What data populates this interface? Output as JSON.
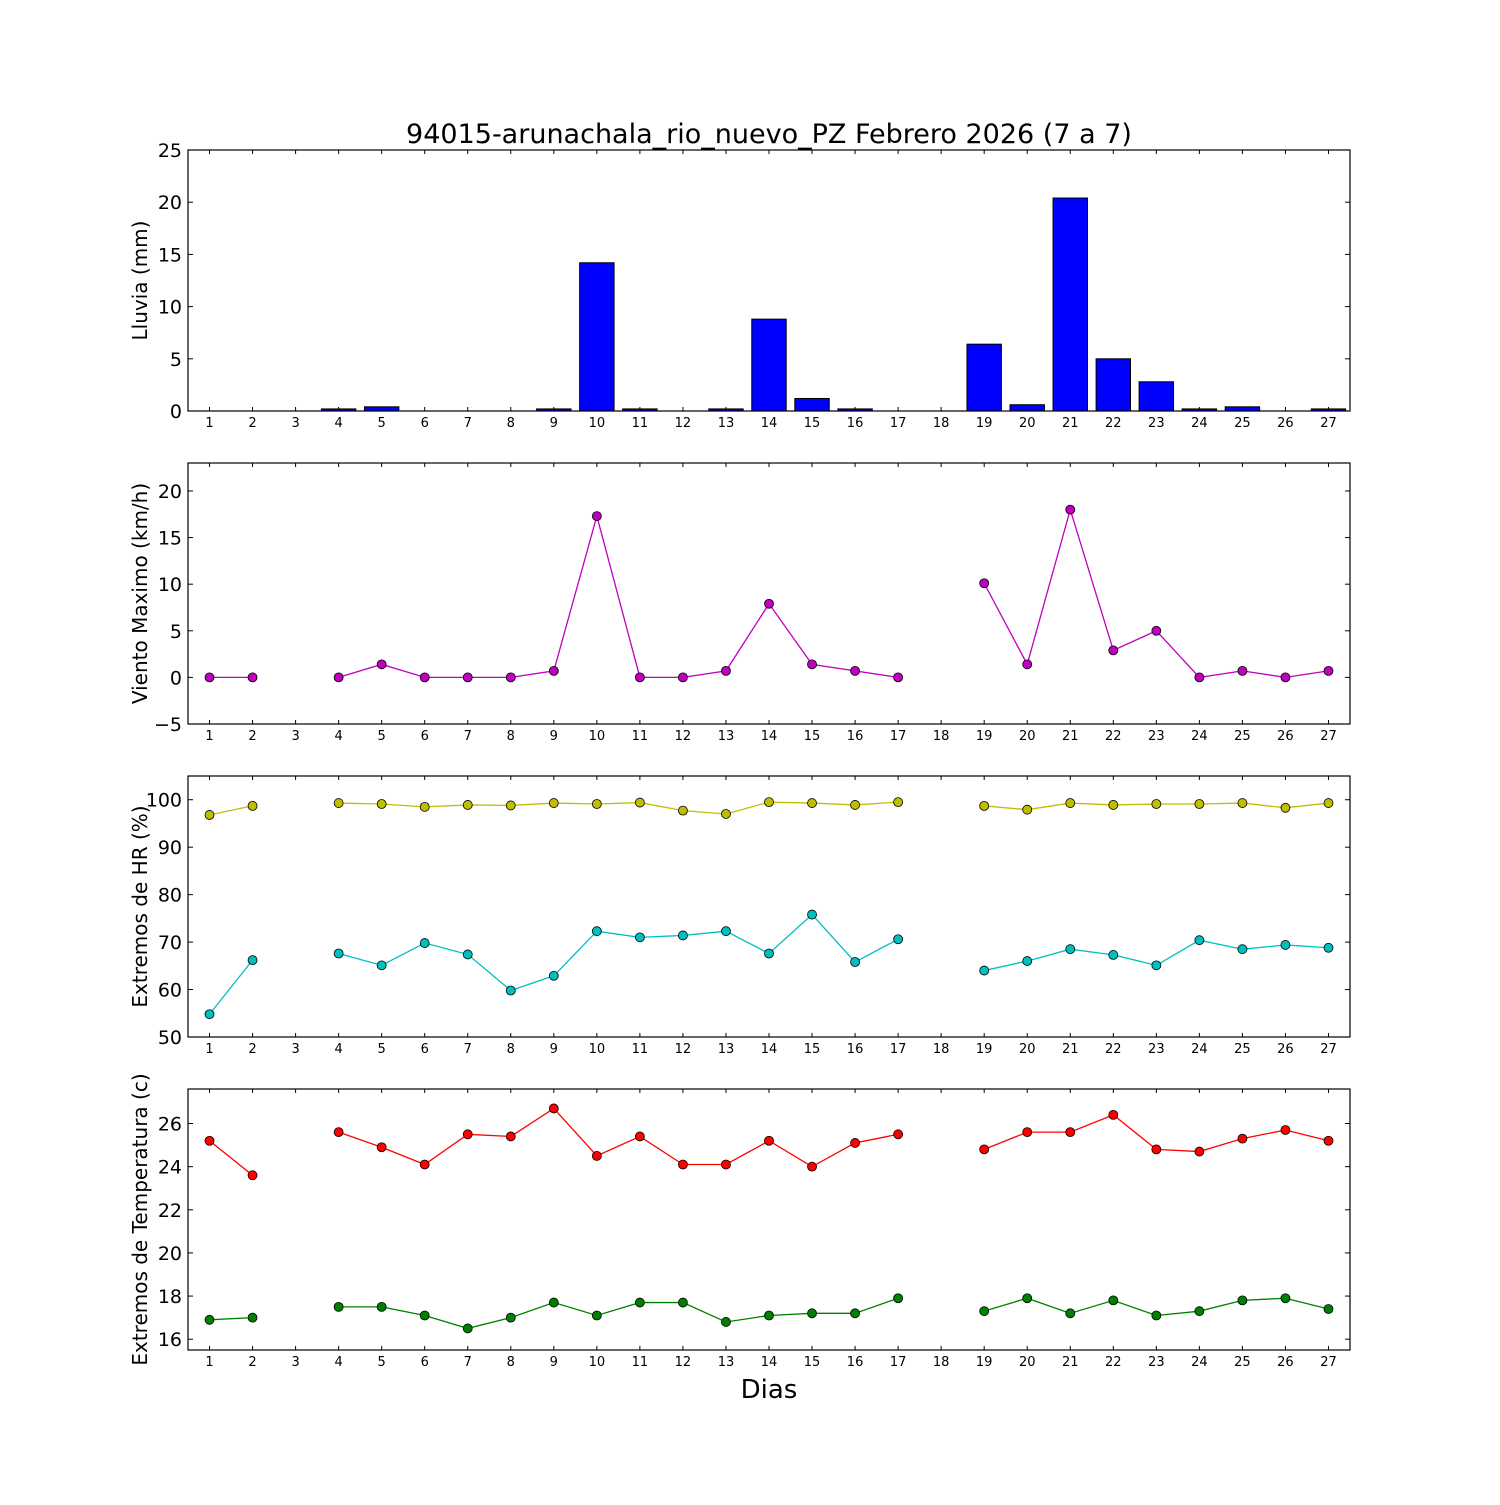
{
  "title": "94015-arunachala_rio_nuevo_PZ Febrero 2026  (7 a 7)",
  "xlabel": "Dias",
  "colors": {
    "rain": "#0000ff",
    "wind": "#bf00bf",
    "hr_max": "#bfbf00",
    "hr_min": "#00bfbf",
    "temp_max": "#ff0000",
    "temp_min": "#008000"
  },
  "chart_data": [
    {
      "type": "bar",
      "ylabel": "Lluvia (mm)",
      "ylim": [
        0,
        25
      ],
      "yticks": [
        0,
        5,
        10,
        15,
        20,
        25
      ],
      "x": [
        1,
        2,
        3,
        4,
        5,
        6,
        7,
        8,
        9,
        10,
        11,
        12,
        13,
        14,
        15,
        16,
        17,
        18,
        19,
        20,
        21,
        22,
        23,
        24,
        25,
        26,
        27
      ],
      "series": [
        {
          "values": [
            0,
            0,
            0,
            0.2,
            0.4,
            0,
            0,
            0,
            0.2,
            14.2,
            0.2,
            0,
            0.2,
            8.8,
            1.2,
            0.2,
            0,
            0,
            6.4,
            0.6,
            20.4,
            5.0,
            2.8,
            0.2,
            0.4,
            0,
            0.2
          ]
        }
      ]
    },
    {
      "type": "line",
      "ylabel": "Viento Maximo (km/h)",
      "ylim": [
        -5,
        23
      ],
      "yticks": [
        -5,
        0,
        5,
        10,
        15,
        20
      ],
      "x": [
        1,
        2,
        3,
        4,
        5,
        6,
        7,
        8,
        9,
        10,
        11,
        12,
        13,
        14,
        15,
        16,
        17,
        18,
        19,
        20,
        21,
        22,
        23,
        24,
        25,
        26,
        27
      ],
      "series": [
        {
          "values": [
            0,
            0,
            null,
            0,
            1.4,
            0,
            0,
            0,
            0.7,
            17.3,
            0,
            0,
            0.7,
            7.9,
            1.4,
            0.7,
            0,
            null,
            10.1,
            1.4,
            18.0,
            2.9,
            5.0,
            0,
            0.7,
            0,
            0.7
          ]
        }
      ]
    },
    {
      "type": "line",
      "ylabel": "Extremos de HR (%)",
      "ylim": [
        50,
        105
      ],
      "yticks": [
        50,
        60,
        70,
        80,
        90,
        100
      ],
      "x": [
        1,
        2,
        3,
        4,
        5,
        6,
        7,
        8,
        9,
        10,
        11,
        12,
        13,
        14,
        15,
        16,
        17,
        18,
        19,
        20,
        21,
        22,
        23,
        24,
        25,
        26,
        27
      ],
      "series": [
        {
          "values": [
            96.8,
            98.7,
            null,
            99.3,
            99.1,
            98.5,
            98.9,
            98.8,
            99.3,
            99.1,
            99.4,
            97.7,
            97.0,
            99.5,
            99.3,
            98.9,
            99.5,
            null,
            98.7,
            97.9,
            99.3,
            98.9,
            99.1,
            99.1,
            99.3,
            98.3,
            99.3
          ]
        },
        {
          "values": [
            54.8,
            66.2,
            null,
            67.6,
            65.1,
            69.8,
            67.4,
            59.8,
            62.9,
            72.3,
            71.0,
            71.4,
            72.3,
            67.6,
            75.8,
            65.8,
            70.6,
            null,
            64.0,
            66.0,
            68.5,
            67.3,
            65.1,
            70.4,
            68.5,
            69.4,
            68.8
          ]
        }
      ]
    },
    {
      "type": "line",
      "ylabel": "Extremos de Temperatura (c)",
      "ylim": [
        15.5,
        27.6
      ],
      "yticks": [
        16,
        18,
        20,
        22,
        24,
        26
      ],
      "x": [
        1,
        2,
        3,
        4,
        5,
        6,
        7,
        8,
        9,
        10,
        11,
        12,
        13,
        14,
        15,
        16,
        17,
        18,
        19,
        20,
        21,
        22,
        23,
        24,
        25,
        26,
        27
      ],
      "series": [
        {
          "values": [
            25.2,
            23.6,
            null,
            25.6,
            24.9,
            24.1,
            25.5,
            25.4,
            26.7,
            24.5,
            25.4,
            24.1,
            24.1,
            25.2,
            24.0,
            25.1,
            25.5,
            null,
            24.8,
            25.6,
            25.6,
            26.4,
            24.8,
            24.7,
            25.3,
            25.7,
            25.2
          ]
        },
        {
          "values": [
            16.9,
            17.0,
            null,
            17.5,
            17.5,
            17.1,
            16.5,
            17.0,
            17.7,
            17.1,
            17.7,
            17.7,
            16.8,
            17.1,
            17.2,
            17.2,
            17.9,
            null,
            17.3,
            17.9,
            17.2,
            17.8,
            17.1,
            17.3,
            17.8,
            17.9,
            17.4
          ]
        }
      ]
    }
  ]
}
